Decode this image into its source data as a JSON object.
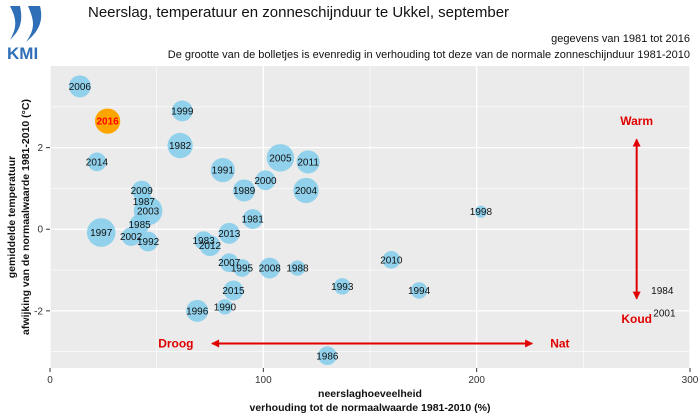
{
  "header": {
    "logo_text": "KMI",
    "title": "Neerslag, temperatuur en zonneschijnduur te Ukkel, september",
    "period": "gegevens van 1981 tot 2016",
    "note": "De grootte van de bolletjes is evenredig in verhouding tot deze van de normale zonneschijnduur 1981-2010"
  },
  "colors": {
    "panel": "#ebebeb",
    "grid": "#ffffff",
    "bubble": "#87ceeb",
    "highlight": "#ffa500",
    "highlight_text": "#ff0000",
    "annotation": "#e00000"
  },
  "chart_data": {
    "type": "scatter",
    "xlabel": "neerslaghoeveelheid",
    "xlabel2": "verhouding tot de normaalwaarde 1981-2010 (%)",
    "ylabel": "gemiddelde temperatuur",
    "ylabel2": "afwijking van de normaalwaarde 1981-2010 (°C)",
    "xlim": [
      0,
      300
    ],
    "ylim": [
      -3.4,
      4.0
    ],
    "xticks": [
      0,
      100,
      200,
      300
    ],
    "yticks": [
      -2,
      0,
      2
    ],
    "grid": true,
    "highlight_year": "2016",
    "points": [
      {
        "year": "2006",
        "x": 14,
        "y": 3.5,
        "size": 1.0
      },
      {
        "year": "2016",
        "x": 27,
        "y": 2.65,
        "size": 1.15
      },
      {
        "year": "1999",
        "x": 62,
        "y": 2.9,
        "size": 0.95
      },
      {
        "year": "1982",
        "x": 61,
        "y": 2.05,
        "size": 1.15
      },
      {
        "year": "2014",
        "x": 22,
        "y": 1.65,
        "size": 0.85
      },
      {
        "year": "2005",
        "x": 108,
        "y": 1.75,
        "size": 1.25
      },
      {
        "year": "2011",
        "x": 121,
        "y": 1.65,
        "size": 1.05
      },
      {
        "year": "1991",
        "x": 81,
        "y": 1.45,
        "size": 1.1
      },
      {
        "year": "2000",
        "x": 101,
        "y": 1.2,
        "size": 0.9
      },
      {
        "year": "1989",
        "x": 91,
        "y": 0.95,
        "size": 1.0
      },
      {
        "year": "2004",
        "x": 120,
        "y": 0.95,
        "size": 1.15
      },
      {
        "year": "2009",
        "x": 43,
        "y": 0.95,
        "size": 0.9
      },
      {
        "year": "1987",
        "x": 44,
        "y": 0.68,
        "size": 0.8
      },
      {
        "year": "2003",
        "x": 46,
        "y": 0.45,
        "size": 1.3
      },
      {
        "year": "1998",
        "x": 202,
        "y": 0.43,
        "size": 0.55
      },
      {
        "year": "1981",
        "x": 95,
        "y": 0.25,
        "size": 0.9
      },
      {
        "year": "1985",
        "x": 42,
        "y": 0.12,
        "size": 0.9
      },
      {
        "year": "1997",
        "x": 24,
        "y": -0.08,
        "size": 1.3
      },
      {
        "year": "2002",
        "x": 38,
        "y": -0.18,
        "size": 0.85
      },
      {
        "year": "2013",
        "x": 84,
        "y": -0.1,
        "size": 0.95
      },
      {
        "year": "1992",
        "x": 46,
        "y": -0.3,
        "size": 0.9
      },
      {
        "year": "1983",
        "x": 72,
        "y": -0.28,
        "size": 0.85
      },
      {
        "year": "2012",
        "x": 75,
        "y": -0.4,
        "size": 0.95
      },
      {
        "year": "2010",
        "x": 160,
        "y": -0.75,
        "size": 0.8
      },
      {
        "year": "2007",
        "x": 84,
        "y": -0.82,
        "size": 0.85
      },
      {
        "year": "1995",
        "x": 90,
        "y": -0.95,
        "size": 0.8
      },
      {
        "year": "2008",
        "x": 103,
        "y": -0.95,
        "size": 0.95
      },
      {
        "year": "1988",
        "x": 116,
        "y": -0.95,
        "size": 0.7
      },
      {
        "year": "1993",
        "x": 137,
        "y": -1.4,
        "size": 0.75
      },
      {
        "year": "2015",
        "x": 86,
        "y": -1.5,
        "size": 0.9
      },
      {
        "year": "1994",
        "x": 173,
        "y": -1.5,
        "size": 0.75
      },
      {
        "year": "1984",
        "x": 287,
        "y": -1.5,
        "size": 0.0
      },
      {
        "year": "1990",
        "x": 82,
        "y": -1.9,
        "size": 0.7
      },
      {
        "year": "1996",
        "x": 69,
        "y": -2.0,
        "size": 1.0
      },
      {
        "year": "2001",
        "x": 288,
        "y": -2.05,
        "size": 0.0
      },
      {
        "year": "1986",
        "x": 130,
        "y": -3.1,
        "size": 0.85
      }
    ],
    "annotations": {
      "warm": "Warm",
      "koud": "Koud",
      "droog": "Droog",
      "nat": "Nat"
    }
  }
}
